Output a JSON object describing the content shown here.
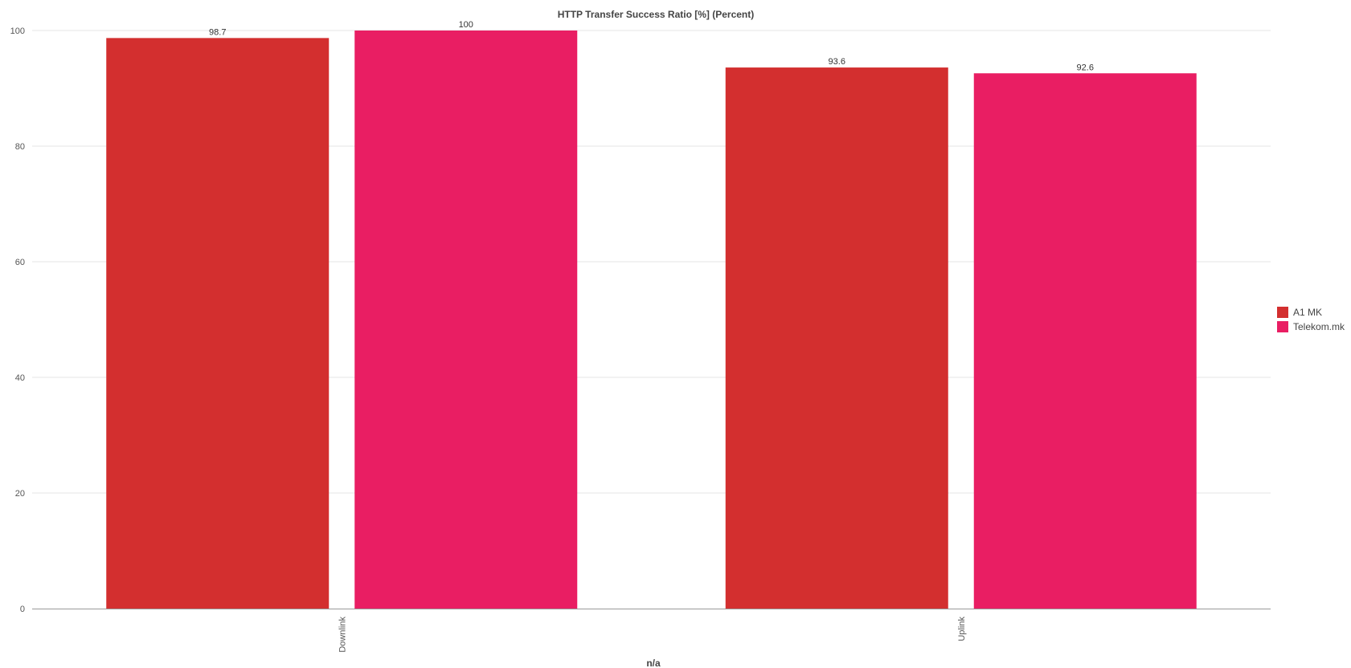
{
  "chart_data": {
    "type": "bar",
    "title": "HTTP Transfer Success Ratio [%] (Percent)",
    "xlabel": "n/a",
    "ylabel": "",
    "categories": [
      "Downlink",
      "Uplink"
    ],
    "series": [
      {
        "name": "A1 MK",
        "color": "#d32f2f",
        "values": [
          98.7,
          93.6
        ],
        "labels": [
          "98.7",
          "93.6"
        ]
      },
      {
        "name": "Telekom.mk",
        "color": "#e91e63",
        "values": [
          100,
          92.6
        ],
        "labels": [
          "100",
          "92.6"
        ]
      }
    ],
    "ylim": [
      0,
      100
    ],
    "yticks": [
      0,
      20,
      40,
      60,
      80,
      100
    ],
    "ytick_labels": [
      "0",
      "20",
      "40",
      "60",
      "80",
      "100"
    ],
    "grid": true,
    "legend_position": "right",
    "category_label_orientation": "vertical"
  }
}
